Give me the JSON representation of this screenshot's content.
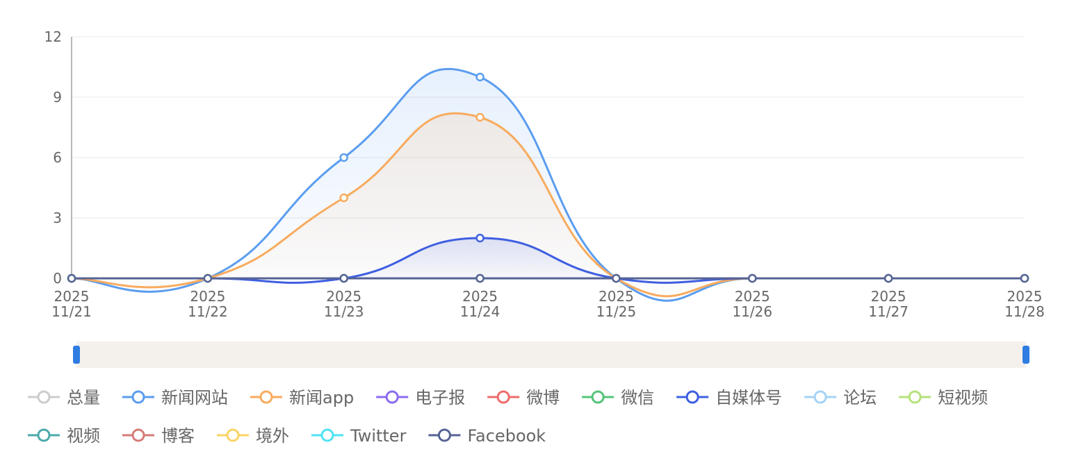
{
  "chart_data": {
    "type": "line",
    "smooth": true,
    "area": true,
    "categories": [
      "2025\n11/21",
      "2025\n11/22",
      "2025\n11/23",
      "2025\n11/24",
      "2025\n11/25",
      "2025\n11/26",
      "2025\n11/27",
      "2025\n11/28"
    ],
    "ylim": [
      0,
      12
    ],
    "yticks": [
      0,
      3,
      6,
      9,
      12
    ],
    "grid": true,
    "series": [
      {
        "name": "总量",
        "color": "#c8c8c8",
        "selected": false
      },
      {
        "name": "新闻网站",
        "color": "#5b9def",
        "values": [
          0,
          0,
          6,
          10,
          0,
          0,
          0,
          0
        ]
      },
      {
        "name": "新闻app",
        "color": "#f8ab5e",
        "values": [
          0,
          0,
          4,
          8,
          0,
          0,
          0,
          0
        ]
      },
      {
        "name": "电子报",
        "color": "#8b6cf0",
        "values": [
          0,
          0,
          0,
          0,
          0,
          0,
          0,
          0
        ]
      },
      {
        "name": "微博",
        "color": "#ef6b6b",
        "values": [
          0,
          0,
          0,
          0,
          0,
          0,
          0,
          0
        ]
      },
      {
        "name": "微信",
        "color": "#55c47a",
        "values": [
          0,
          0,
          0,
          0,
          0,
          0,
          0,
          0
        ]
      },
      {
        "name": "自媒体号",
        "color": "#3e5fe0",
        "values": [
          0,
          0,
          0,
          2,
          0,
          0,
          0,
          0
        ]
      },
      {
        "name": "论坛",
        "color": "#a6d3f5",
        "values": [
          0,
          0,
          0,
          0,
          0,
          0,
          0,
          0
        ]
      },
      {
        "name": "短视频",
        "color": "#b5e27a",
        "values": [
          0,
          0,
          0,
          0,
          0,
          0,
          0,
          0
        ]
      },
      {
        "name": "视频",
        "color": "#4aa9ab",
        "values": [
          0,
          0,
          0,
          0,
          0,
          0,
          0,
          0
        ]
      },
      {
        "name": "博客",
        "color": "#d57b77",
        "values": [
          0,
          0,
          0,
          0,
          0,
          0,
          0,
          0
        ]
      },
      {
        "name": "境外",
        "color": "#fbd465",
        "values": [
          0,
          0,
          0,
          0,
          0,
          0,
          0,
          0
        ]
      },
      {
        "name": "Twitter",
        "color": "#4ee3f3",
        "values": [
          0,
          0,
          0,
          0,
          0,
          0,
          0,
          0
        ]
      },
      {
        "name": "Facebook",
        "color": "#566394",
        "values": [
          0,
          0,
          0,
          0,
          0,
          0,
          0,
          0
        ]
      }
    ]
  }
}
